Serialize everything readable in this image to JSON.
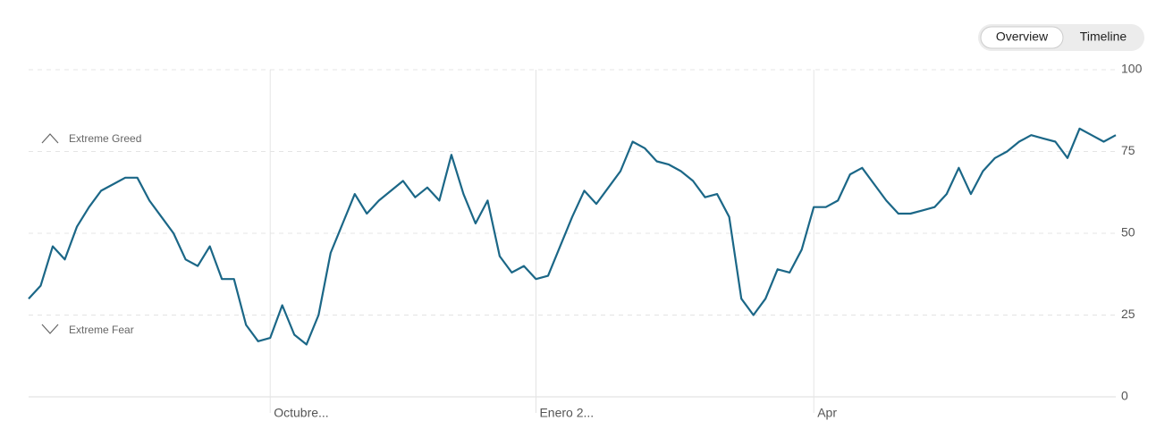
{
  "buttons": [
    "Overview",
    "Timeline"
  ],
  "chart_data": {
    "type": "line",
    "annotations": [
      "Extreme Greed",
      "Extreme Fear"
    ],
    "categories": [
      null,
      null,
      null,
      null,
      null,
      null,
      null,
      null,
      null,
      null,
      null,
      null,
      null,
      null,
      null,
      null,
      null,
      null,
      null,
      null,
      "Octubre...",
      null,
      null,
      null,
      null,
      null,
      null,
      null,
      null,
      null,
      null,
      null,
      null,
      null,
      null,
      null,
      null,
      null,
      null,
      null,
      null,
      null,
      "Enero 2...",
      null,
      null,
      null,
      null,
      null,
      null,
      null,
      null,
      null,
      null,
      null,
      null,
      null,
      null,
      null,
      null,
      null,
      null,
      null,
      null,
      null,
      null,
      "Apr",
      null,
      null,
      null,
      null,
      null,
      null,
      null,
      null,
      null,
      null,
      null,
      null,
      null,
      null,
      null,
      null,
      null,
      null,
      null,
      null,
      null,
      null,
      null,
      null,
      null
    ],
    "values": [
      30,
      34,
      46,
      42,
      52,
      58,
      63,
      65,
      67,
      67,
      60,
      55,
      50,
      42,
      40,
      46,
      36,
      36,
      22,
      17,
      18,
      28,
      19,
      16,
      25,
      44,
      53,
      62,
      56,
      60,
      63,
      66,
      61,
      64,
      60,
      74,
      62,
      53,
      60,
      43,
      38,
      40,
      36,
      37,
      46,
      55,
      63,
      59,
      64,
      69,
      78,
      76,
      72,
      71,
      69,
      66,
      61,
      62,
      55,
      30,
      25,
      30,
      39,
      38,
      45,
      58,
      58,
      60,
      68,
      70,
      65,
      60,
      56,
      56,
      57,
      58,
      62,
      70,
      62,
      69,
      73,
      75,
      78,
      80,
      79,
      78,
      73,
      82,
      80,
      78,
      80
    ],
    "color": "#1b6787",
    "ylim": [
      0,
      100
    ],
    "yticks": [
      0,
      25,
      50,
      75,
      100
    ],
    "grid": true
  }
}
